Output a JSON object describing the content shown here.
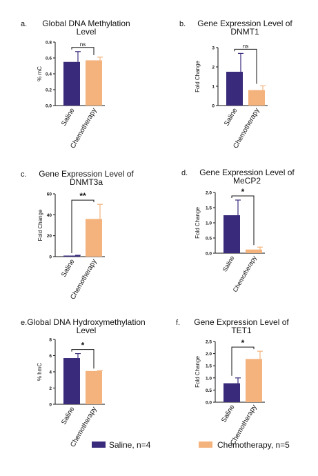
{
  "colors": {
    "saline": "#3a2a7c",
    "chemotherapy": "#f4b27c",
    "axis": "#111111"
  },
  "legend": {
    "items": [
      {
        "label": "Saline, n=4",
        "color": "#3a2a7c"
      },
      {
        "label": "Chemotherapy, n=5",
        "color": "#f4b27c"
      }
    ]
  },
  "chart_data": [
    {
      "type": "bar",
      "panel": "a.",
      "title": [
        "Global DNA Methylation",
        "Level"
      ],
      "ylabel": "% mC",
      "ylim": [
        0,
        0.8
      ],
      "yticks": [
        "0.0",
        "0.2",
        "0.4",
        "0.6",
        "0.8"
      ],
      "categories": [
        "Saline",
        "Chemotherapy"
      ],
      "values": [
        0.55,
        0.57
      ],
      "errors": [
        0.13,
        0.04
      ],
      "significance": "ns"
    },
    {
      "type": "bar",
      "panel": "b.",
      "title": [
        "Gene Expression Level of",
        "DNMT1"
      ],
      "ylabel": "Fold Change",
      "ylim": [
        0,
        3
      ],
      "yticks": [
        "0",
        "1",
        "2",
        "3"
      ],
      "categories": [
        "Saline",
        "Chemotherapy"
      ],
      "values": [
        1.75,
        0.8
      ],
      "errors": [
        0.95,
        0.22
      ],
      "significance": "ns"
    },
    {
      "type": "bar",
      "panel": "c.",
      "title": [
        "Gene Expression Level of",
        "DNMT3a"
      ],
      "ylabel": "Fold Change",
      "ylim": [
        0,
        60
      ],
      "yticks": [
        "0",
        "20",
        "40",
        "60"
      ],
      "categories": [
        "Saline",
        "Chemotherapy"
      ],
      "values": [
        1,
        36
      ],
      "errors": [
        0.3,
        14
      ],
      "significance": "**"
    },
    {
      "type": "bar",
      "panel": "d.",
      "title": [
        "Gene Expression Level of",
        "MeCP2"
      ],
      "ylabel": "Fold Change",
      "ylim": [
        0,
        2.0
      ],
      "yticks": [
        "0.0",
        "0.5",
        "1.0",
        "1.5",
        "2.0"
      ],
      "categories": [
        "Saline",
        "Chemotherapy"
      ],
      "values": [
        1.25,
        0.12
      ],
      "errors": [
        0.5,
        0.08
      ],
      "significance": "*"
    },
    {
      "type": "bar",
      "panel": "e.",
      "title": [
        "Global DNA Hydroxymethylation",
        "Level"
      ],
      "ylabel": "% hmC",
      "ylim": [
        0,
        8
      ],
      "yticks": [
        "0",
        "2",
        "4",
        "6",
        "8"
      ],
      "categories": [
        "Saline",
        "Chemotherapy"
      ],
      "values": [
        5.7,
        4.1
      ],
      "errors": [
        0.55,
        0.05
      ],
      "significance": "*"
    },
    {
      "type": "bar",
      "panel": "f.",
      "title": [
        "Gene Expression Level of",
        "TET1"
      ],
      "ylabel": "Fold Change",
      "ylim": [
        0,
        2.5
      ],
      "yticks": [
        "0.0",
        "0.5",
        "1.0",
        "1.5",
        "2.0",
        "2.5"
      ],
      "categories": [
        "Saline",
        "Chemotherapy"
      ],
      "values": [
        0.78,
        1.78
      ],
      "errors": [
        0.22,
        0.32
      ],
      "significance": "*"
    }
  ]
}
